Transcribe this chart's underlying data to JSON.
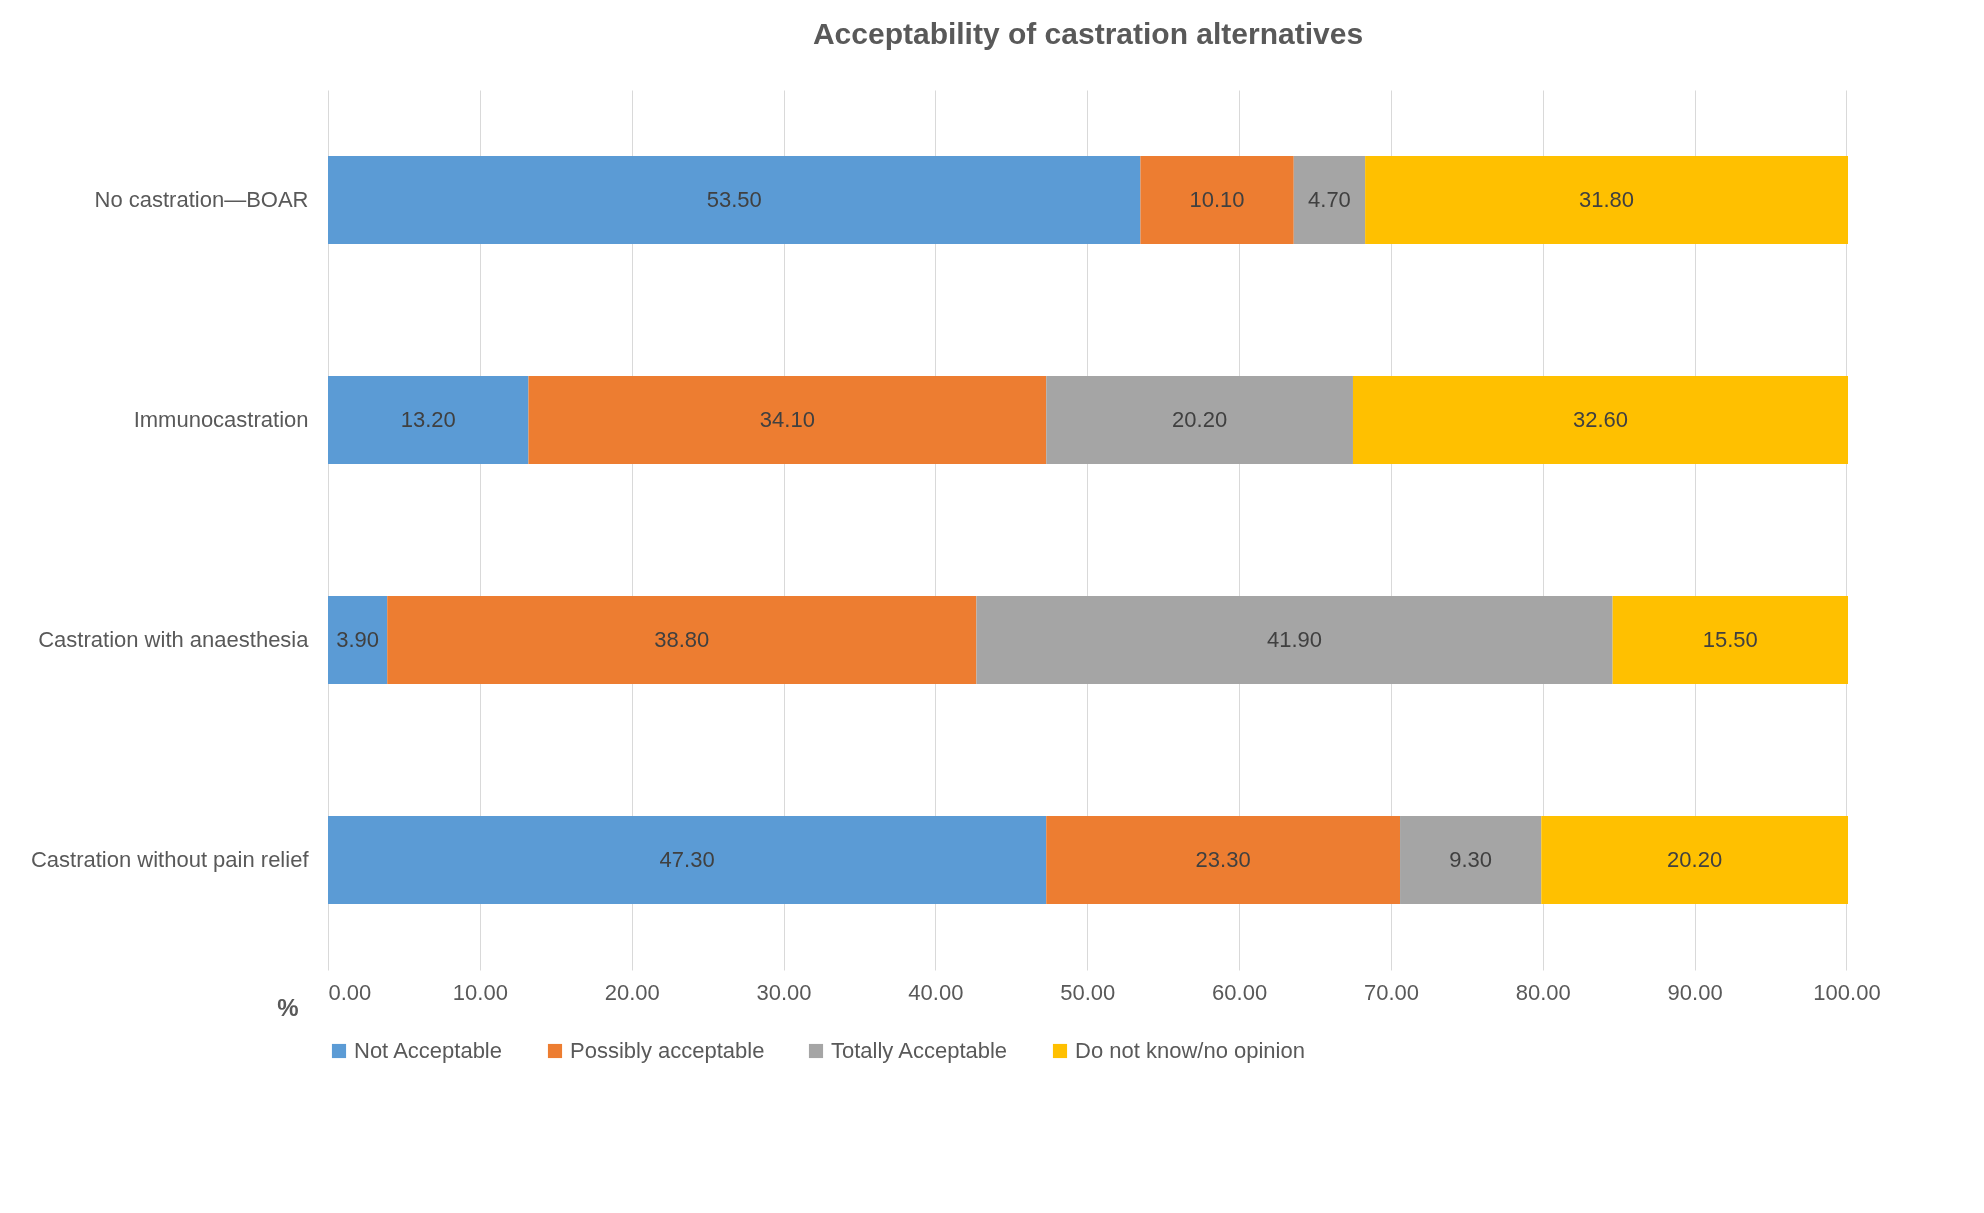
{
  "chart_data": {
    "type": "bar",
    "orientation": "horizontal",
    "stacked": true,
    "title": "Acceptability of castration alternatives",
    "xlabel": "%",
    "categories": [
      "No castration—BOAR",
      "Immunocastration",
      "Castration with anaesthesia",
      "Castration without pain relief"
    ],
    "series": [
      {
        "name": "Not Acceptable",
        "color": "#5b9bd5",
        "values": [
          53.5,
          13.2,
          3.9,
          47.3
        ],
        "value_labels": [
          "53.50",
          "13.20",
          "3.90",
          "47.30"
        ]
      },
      {
        "name": "Possibly acceptable",
        "color": "#ed7d31",
        "values": [
          10.1,
          34.1,
          38.8,
          23.3
        ],
        "value_labels": [
          "10.10",
          "34.10",
          "38.80",
          "23.30"
        ]
      },
      {
        "name": "Totally Acceptable",
        "color": "#a5a5a5",
        "values": [
          4.7,
          20.2,
          41.9,
          9.3
        ],
        "value_labels": [
          "4.70",
          "20.20",
          "41.90",
          "9.30"
        ]
      },
      {
        "name": "Do not know/no opinion",
        "color": "#ffc000",
        "values": [
          31.8,
          32.6,
          15.5,
          20.2
        ],
        "value_labels": [
          "31.80",
          "32.60",
          "15.50",
          "20.20"
        ]
      }
    ],
    "xlim": [
      0,
      100.1
    ],
    "xticks": [
      {
        "value": 0,
        "label": "0.00"
      },
      {
        "value": 10,
        "label": "10.00"
      },
      {
        "value": 20,
        "label": "20.00"
      },
      {
        "value": 30,
        "label": "30.00"
      },
      {
        "value": 40,
        "label": "40.00"
      },
      {
        "value": 50,
        "label": "50.00"
      },
      {
        "value": 60,
        "label": "60.00"
      },
      {
        "value": 70,
        "label": "70.00"
      },
      {
        "value": 80,
        "label": "80.00"
      },
      {
        "value": 90,
        "label": "90.00"
      },
      {
        "value": 100,
        "label": "100.00"
      }
    ],
    "grid": "x",
    "legend": "bottom"
  }
}
